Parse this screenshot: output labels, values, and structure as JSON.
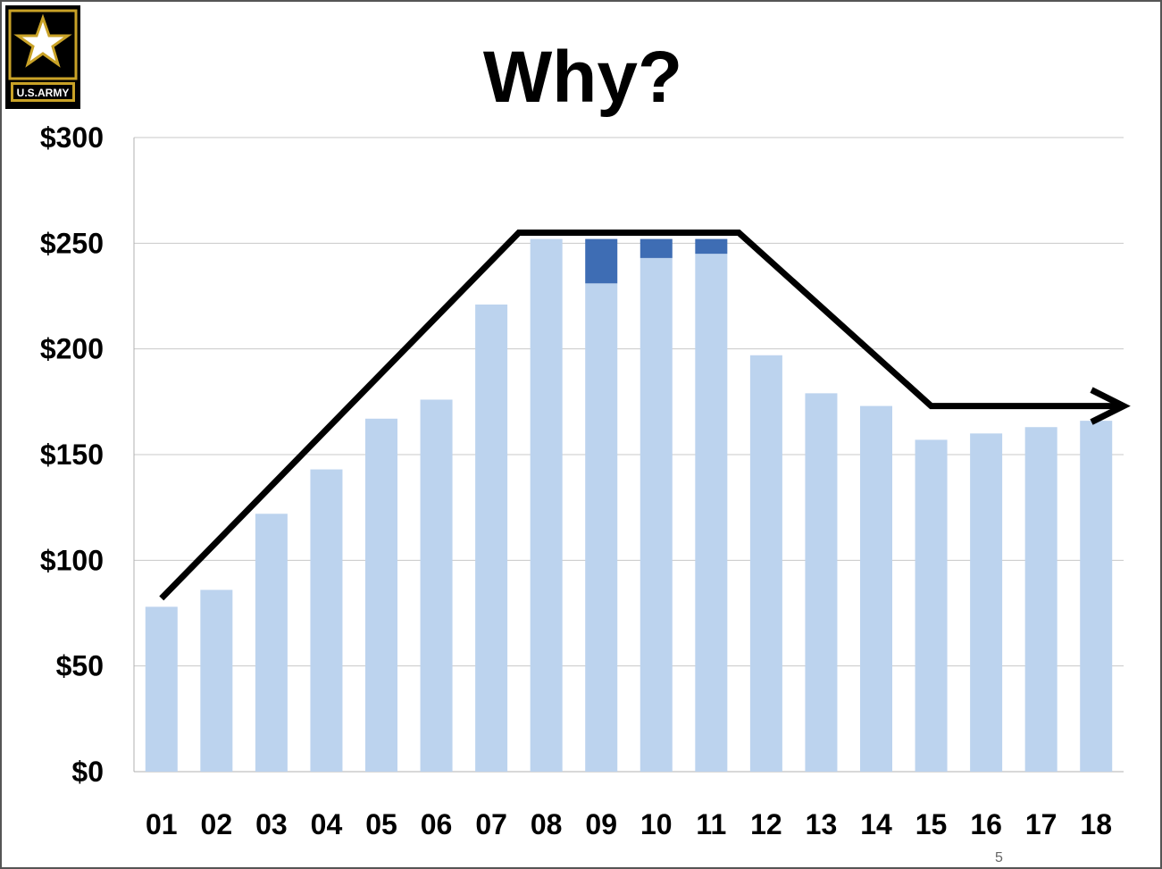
{
  "slide": {
    "title": "Why?",
    "page_number": "5",
    "logo": {
      "icon": "us-army-star-logo",
      "text": "U.S.ARMY"
    }
  },
  "colors": {
    "base_bar": "#bcd3ee",
    "top_segment": "#3e6db4",
    "trend_line": "#000000",
    "grid": "#c8c8c8"
  },
  "chart_data": {
    "type": "bar",
    "stacked": true,
    "categories": [
      "01",
      "02",
      "03",
      "04",
      "05",
      "06",
      "07",
      "08",
      "09",
      "10",
      "11",
      "12",
      "13",
      "14",
      "15",
      "16",
      "17",
      "18"
    ],
    "series": [
      {
        "values": [
          78,
          86,
          122,
          143,
          167,
          176,
          221,
          252,
          231,
          243,
          245,
          197,
          179,
          173,
          157,
          160,
          163,
          166
        ]
      },
      {
        "values": [
          0,
          0,
          0,
          0,
          0,
          0,
          0,
          0,
          21,
          9,
          7,
          0,
          0,
          0,
          0,
          0,
          0,
          0
        ]
      }
    ],
    "y_tick_labels": [
      "$0",
      "$50",
      "$100",
      "$150",
      "$200",
      "$250",
      "$300"
    ],
    "ylim": [
      0,
      300
    ],
    "grid": true,
    "legend": "none",
    "trend_line": {
      "x": [
        "01",
        "07.5",
        "11.5",
        "15",
        "18.5"
      ],
      "y": [
        82,
        255,
        255,
        173,
        173
      ],
      "arrow_end": true
    }
  }
}
